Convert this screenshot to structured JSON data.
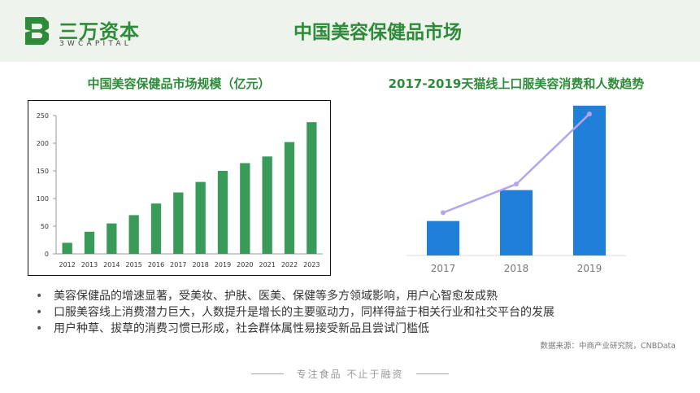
{
  "brand": {
    "name": "三万资本",
    "subtitle": "3WCAPITAL",
    "colors": {
      "primary": "#2e8b3a",
      "header_bg": "#eef4ec"
    }
  },
  "page": {
    "title": "中国美容保健品市场"
  },
  "chart_data": [
    {
      "type": "bar",
      "title": "中国美容保健品市场规模（亿元）",
      "categories": [
        "2012",
        "2013",
        "2014",
        "2015",
        "2016",
        "2017",
        "2018",
        "2019",
        "2020",
        "2021",
        "2022",
        "2023"
      ],
      "values": [
        20,
        40,
        55,
        70,
        91,
        111,
        130,
        150,
        164,
        176,
        202,
        238
      ],
      "ylim": [
        0,
        250
      ],
      "yticks": [
        0,
        50,
        100,
        150,
        200,
        250
      ],
      "grid": false,
      "color": "#3a9a5a"
    },
    {
      "type": "bar+line",
      "title": "2017-2019天猫线上口服美容消费和人数趋势",
      "categories": [
        "2017",
        "2018",
        "2019"
      ],
      "series": [
        {
          "kind": "bar",
          "values": [
            58,
            110,
            252
          ],
          "color": "#1f7fd9"
        },
        {
          "kind": "line",
          "values": [
            72,
            120,
            238
          ],
          "color": "#b4a4f2"
        }
      ],
      "ylim": [
        0,
        260
      ],
      "yaxis_visible": false,
      "grid": false
    }
  ],
  "bullets": [
    "美容保健品的增速显著，受美妆、护肤、医美、保健等多方领域影响，用户心智愈发成熟",
    "口服美容线上消费潜力巨大，人数提升是增长的主要驱动力，同样得益于相关行业和社交平台的发展",
    "用户种草、拔草的消费习惯已形成，社会群体属性易接受新品且尝试门槛低"
  ],
  "source": "数据来源：中商产业研究院，CNBData",
  "footer": {
    "text": "专注食品 不止于融资"
  }
}
